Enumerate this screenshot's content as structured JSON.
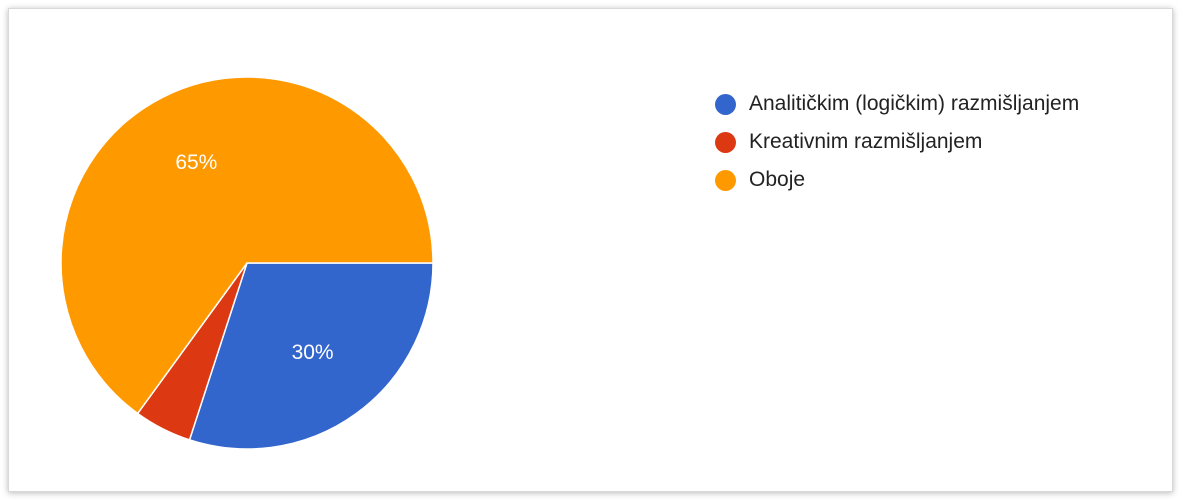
{
  "chart_data": {
    "type": "pie",
    "title": "",
    "slices": [
      {
        "label": "Analitičkim (logičkim) razmišljanjem",
        "value": 30,
        "data_label": "30%",
        "color": "#3366cc"
      },
      {
        "label": "Kreativnim razmišljanjem",
        "value": 5,
        "data_label": "",
        "color": "#dc3912"
      },
      {
        "label": "Oboje",
        "value": 65,
        "data_label": "65%",
        "color": "#ff9900"
      }
    ],
    "legend_position": "right",
    "start_angle": "3 o'clock, clockwise"
  }
}
